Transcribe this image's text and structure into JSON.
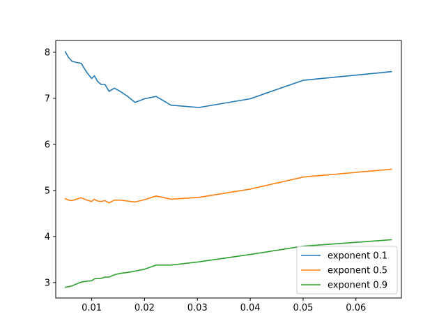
{
  "chart_data": {
    "type": "line",
    "title": "",
    "xlabel": "",
    "ylabel": "",
    "xlim": [
      0.0032,
      0.0686
    ],
    "ylim": [
      2.665,
      8.255
    ],
    "x_ticks": [
      0.01,
      0.02,
      0.03,
      0.04,
      0.05,
      0.06
    ],
    "x_tick_labels": [
      "0.01",
      "0.02",
      "0.03",
      "0.04",
      "0.05",
      "0.06"
    ],
    "y_ticks": [
      3,
      4,
      5,
      6,
      7,
      8
    ],
    "y_tick_labels": [
      "3",
      "4",
      "5",
      "6",
      "7",
      "8"
    ],
    "grid": false,
    "legend_position": "lower right",
    "series": [
      {
        "name": "exponent 0.1",
        "color": "#1f77b4",
        "x": [
          0.005,
          0.0056,
          0.0063,
          0.0071,
          0.008,
          0.0091,
          0.01,
          0.0105,
          0.0111,
          0.0118,
          0.0125,
          0.0133,
          0.0143,
          0.0154,
          0.0167,
          0.0182,
          0.02,
          0.0222,
          0.025,
          0.0303,
          0.04,
          0.05,
          0.0667
        ],
        "y": [
          8.01,
          7.89,
          7.8,
          7.78,
          7.76,
          7.56,
          7.43,
          7.49,
          7.37,
          7.3,
          7.3,
          7.15,
          7.22,
          7.15,
          7.05,
          6.91,
          6.99,
          7.04,
          6.85,
          6.8,
          6.99,
          7.39,
          7.58
        ]
      },
      {
        "name": "exponent 0.5",
        "color": "#ff7f0e",
        "x": [
          0.005,
          0.0056,
          0.0063,
          0.0071,
          0.008,
          0.0091,
          0.01,
          0.0105,
          0.0111,
          0.0118,
          0.0125,
          0.0133,
          0.0143,
          0.0154,
          0.0167,
          0.0182,
          0.02,
          0.0222,
          0.025,
          0.0303,
          0.04,
          0.05,
          0.0667
        ],
        "y": [
          4.82,
          4.79,
          4.78,
          4.81,
          4.84,
          4.79,
          4.76,
          4.81,
          4.77,
          4.76,
          4.78,
          4.73,
          4.79,
          4.79,
          4.77,
          4.75,
          4.8,
          4.88,
          4.81,
          4.85,
          5.03,
          5.29,
          5.46
        ]
      },
      {
        "name": "exponent 0.9",
        "color": "#2ca02c",
        "x": [
          0.005,
          0.0056,
          0.0063,
          0.0071,
          0.008,
          0.0091,
          0.01,
          0.0105,
          0.0111,
          0.0118,
          0.0125,
          0.0133,
          0.0143,
          0.0154,
          0.0167,
          0.0182,
          0.02,
          0.0222,
          0.025,
          0.0303,
          0.04,
          0.05,
          0.0667
        ],
        "y": [
          2.9,
          2.91,
          2.93,
          2.97,
          3.01,
          3.03,
          3.04,
          3.08,
          3.09,
          3.09,
          3.12,
          3.12,
          3.17,
          3.2,
          3.22,
          3.25,
          3.29,
          3.38,
          3.38,
          3.45,
          3.61,
          3.79,
          3.93
        ]
      }
    ]
  }
}
